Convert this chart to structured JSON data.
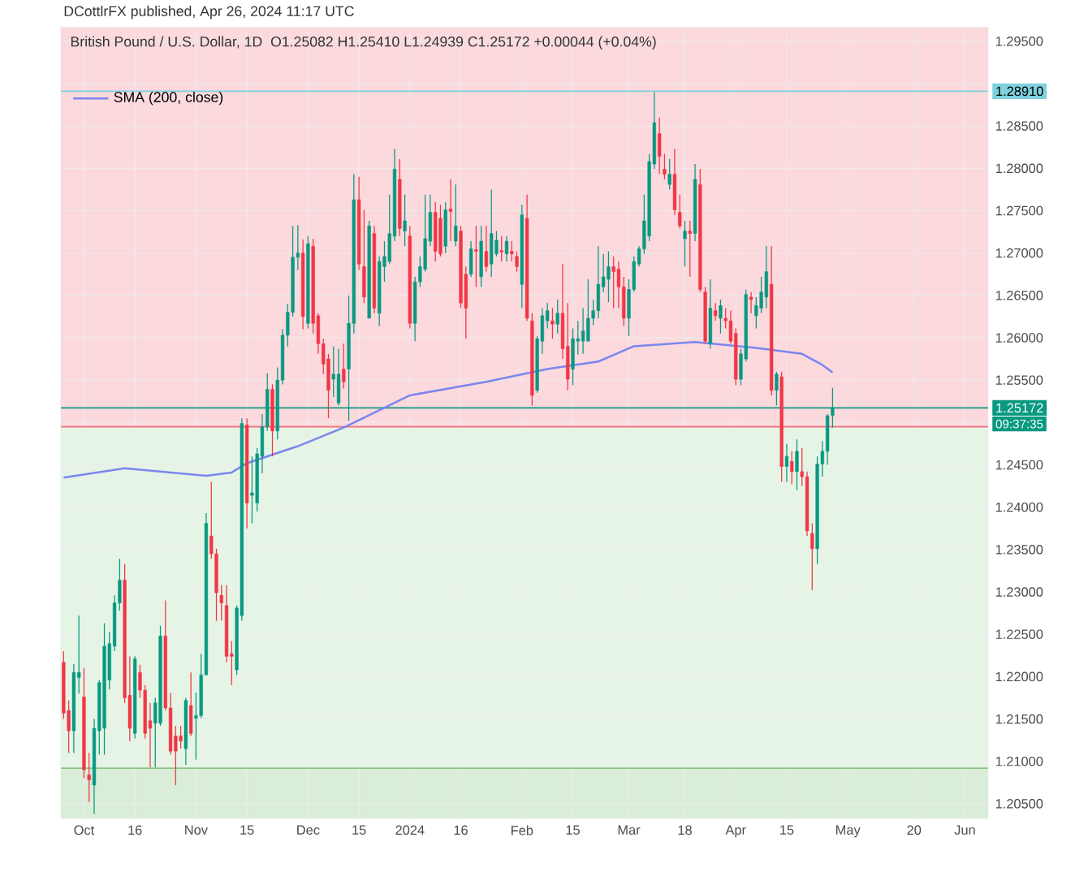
{
  "chart_data": {
    "type": "candlestick",
    "title": "British Pound / U.S. Dollar, 1D",
    "subtitle": "O1.25082 H1.25410 L1.24939 C1.25172 +0.00044 (+0.04%)",
    "annotations": [
      "DCottlrFX published, Apr 26, 2024 11:17 UTC",
      "09:37:35"
    ],
    "categories": [
      null,
      null,
      null,
      null,
      "Oct",
      null,
      null,
      null,
      null,
      null,
      null,
      null,
      null,
      null,
      "16",
      null,
      null,
      null,
      null,
      null,
      null,
      null,
      null,
      null,
      null,
      null,
      "Nov",
      null,
      null,
      null,
      null,
      null,
      null,
      null,
      null,
      null,
      "15",
      null,
      null,
      null,
      null,
      null,
      null,
      null,
      null,
      null,
      null,
      null,
      "Dec",
      null,
      null,
      null,
      null,
      null,
      null,
      null,
      null,
      null,
      "15",
      null,
      null,
      null,
      null,
      null,
      null,
      null,
      null,
      null,
      "2024",
      null,
      null,
      null,
      null,
      null,
      null,
      null,
      null,
      null,
      "16",
      null,
      null,
      null,
      null,
      null,
      null,
      null,
      null,
      null,
      null,
      null,
      "Feb",
      null,
      null,
      null,
      null,
      null,
      null,
      null,
      null,
      null,
      "15",
      null,
      null,
      null,
      null,
      null,
      null,
      null,
      null,
      null,
      null,
      "Mar",
      null,
      null,
      null,
      null,
      null,
      null,
      null,
      null,
      null,
      null,
      "18",
      null,
      null,
      null,
      null,
      null,
      null,
      null,
      null,
      null,
      "Apr",
      null,
      null,
      null,
      null,
      null,
      null,
      null,
      null,
      null,
      "15",
      null,
      null,
      null,
      null,
      null,
      null,
      null,
      null,
      null,
      null,
      null,
      "May",
      null,
      null,
      null,
      null,
      null,
      null,
      null,
      null,
      null,
      null,
      null,
      null,
      "20",
      null,
      null,
      null,
      null,
      null,
      null,
      null,
      null,
      null,
      "Jun",
      null,
      null,
      null,
      null
    ],
    "ohlc": [
      [
        1.2217,
        1.223,
        1.215,
        1.2157
      ],
      [
        1.216,
        1.2172,
        1.211,
        1.2136
      ],
      [
        1.2136,
        1.2215,
        1.211,
        1.2205
      ],
      [
        1.2199,
        1.2272,
        1.218,
        1.2205
      ],
      [
        1.2176,
        1.221,
        1.208,
        1.209
      ],
      [
        1.2084,
        1.211,
        1.2052,
        1.2078
      ],
      [
        1.2072,
        1.215,
        1.2038,
        1.2139
      ],
      [
        1.2136,
        1.2196,
        1.2108,
        1.2193
      ],
      [
        1.2139,
        1.2263,
        1.2108,
        1.2236
      ],
      [
        1.2196,
        1.2253,
        1.2185,
        1.2239
      ],
      [
        1.2236,
        1.2296,
        1.223,
        1.2287
      ],
      [
        1.2287,
        1.2339,
        1.2278,
        1.2314
      ],
      [
        1.2314,
        1.2333,
        1.2169,
        1.2175
      ],
      [
        1.2178,
        1.2224,
        1.2124,
        1.2139
      ],
      [
        1.2133,
        1.2224,
        1.2127,
        1.2221
      ],
      [
        1.2205,
        1.2214,
        1.2175,
        1.2184
      ],
      [
        1.2184,
        1.219,
        1.2127,
        1.2133
      ],
      [
        1.2148,
        1.2169,
        1.2093,
        1.2139
      ],
      [
        1.2145,
        1.2175,
        1.2093,
        1.2169
      ],
      [
        1.2145,
        1.226,
        1.2142,
        1.2248
      ],
      [
        1.2248,
        1.229,
        1.216,
        1.2163
      ],
      [
        1.2163,
        1.2181,
        1.2108,
        1.2112
      ],
      [
        1.213,
        1.2142,
        1.2072,
        1.2112
      ],
      [
        1.213,
        1.2142,
        1.2115,
        1.2124
      ],
      [
        1.2115,
        1.2175,
        1.2096,
        1.2172
      ],
      [
        1.2166,
        1.2205,
        1.213,
        1.2133
      ],
      [
        1.2151,
        1.2181,
        1.2102,
        1.2154
      ],
      [
        1.2154,
        1.2227,
        1.2151,
        1.2202
      ],
      [
        1.2202,
        1.2393,
        1.2202,
        1.2381
      ],
      [
        1.2366,
        1.243,
        1.2339,
        1.2345
      ],
      [
        1.2345,
        1.2351,
        1.2266,
        1.2299
      ],
      [
        1.2296,
        1.2308,
        1.2266,
        1.2287
      ],
      [
        1.2284,
        1.2308,
        1.2217,
        1.2224
      ],
      [
        1.2227,
        1.2242,
        1.219,
        1.2224
      ],
      [
        1.2208,
        1.2284,
        1.2202,
        1.2281
      ],
      [
        1.2272,
        1.2505,
        1.2266,
        1.2499
      ],
      [
        1.2497,
        1.2505,
        1.2375,
        1.2405
      ],
      [
        1.2414,
        1.246,
        1.2381,
        1.2417
      ],
      [
        1.2405,
        1.247,
        1.2395,
        1.2463
      ],
      [
        1.246,
        1.251,
        1.244,
        1.2495
      ],
      [
        1.2495,
        1.2558,
        1.249,
        1.2539
      ],
      [
        1.2539,
        1.2545,
        1.246,
        1.249
      ],
      [
        1.249,
        1.2565,
        1.248,
        1.255
      ],
      [
        1.255,
        1.261,
        1.2545,
        1.2603
      ],
      [
        1.2603,
        1.264,
        1.259,
        1.263
      ],
      [
        1.263,
        1.2732,
        1.2625,
        1.2695
      ],
      [
        1.2695,
        1.2733,
        1.268,
        1.27
      ],
      [
        1.27,
        1.2716,
        1.261,
        1.2625
      ],
      [
        1.2617,
        1.272,
        1.2611,
        1.2711
      ],
      [
        1.2708,
        1.2717,
        1.2605,
        1.2617
      ],
      [
        1.2626,
        1.2629,
        1.2581,
        1.2593
      ],
      [
        1.2593,
        1.2599,
        1.2557,
        1.2569
      ],
      [
        1.2575,
        1.2581,
        1.2505,
        1.2538
      ],
      [
        1.2551,
        1.259,
        1.253,
        1.2557
      ],
      [
        1.2523,
        1.2587,
        1.252,
        1.2557
      ],
      [
        1.2563,
        1.2593,
        1.254,
        1.2548
      ],
      [
        1.2563,
        1.265,
        1.2502,
        1.2617
      ],
      [
        1.2617,
        1.2793,
        1.2605,
        1.2763
      ],
      [
        1.2763,
        1.279,
        1.268,
        1.2687
      ],
      [
        1.2684,
        1.2751,
        1.2641,
        1.2648
      ],
      [
        1.2623,
        1.2738,
        1.2623,
        1.2732
      ],
      [
        1.2723,
        1.2732,
        1.2629,
        1.2635
      ],
      [
        1.2629,
        1.2696,
        1.2614,
        1.269
      ],
      [
        1.2684,
        1.2714,
        1.2666,
        1.2696
      ],
      [
        1.269,
        1.2769,
        1.2687,
        1.2723
      ],
      [
        1.272,
        1.2823,
        1.2714,
        1.2799
      ],
      [
        1.2787,
        1.2811,
        1.272,
        1.2729
      ],
      [
        1.2726,
        1.2769,
        1.2708,
        1.2738
      ],
      [
        1.272,
        1.2732,
        1.2611,
        1.2617
      ],
      [
        1.2617,
        1.2672,
        1.2596,
        1.2666
      ],
      [
        1.2666,
        1.2696,
        1.266,
        1.2684
      ],
      [
        1.2681,
        1.2769,
        1.2678,
        1.2717
      ],
      [
        1.2714,
        1.2769,
        1.2708,
        1.2748
      ],
      [
        1.2748,
        1.276,
        1.269,
        1.2702
      ],
      [
        1.2741,
        1.2757,
        1.2696,
        1.2699
      ],
      [
        1.2708,
        1.276,
        1.27,
        1.2751
      ],
      [
        1.2752,
        1.2787,
        1.2714,
        1.2749
      ],
      [
        1.2714,
        1.2781,
        1.2708,
        1.2732
      ],
      [
        1.2726,
        1.2732,
        1.2635,
        1.2641
      ],
      [
        1.2675,
        1.2684,
        1.2599,
        1.2635
      ],
      [
        1.2675,
        1.2714,
        1.2672,
        1.2705
      ],
      [
        1.2704,
        1.2732,
        1.266,
        1.2702
      ],
      [
        1.2672,
        1.2732,
        1.266,
        1.2714
      ],
      [
        1.2702,
        1.2732,
        1.2678,
        1.2684
      ],
      [
        1.2687,
        1.2775,
        1.2672,
        1.2723
      ],
      [
        1.2699,
        1.2726,
        1.2696,
        1.2715
      ],
      [
        1.2703,
        1.272,
        1.269,
        1.2701
      ],
      [
        1.2699,
        1.272,
        1.269,
        1.2714
      ],
      [
        1.2702,
        1.2714,
        1.269,
        1.2699
      ],
      [
        1.2696,
        1.2702,
        1.2678,
        1.2684
      ],
      [
        1.2663,
        1.2757,
        1.2635,
        1.2745
      ],
      [
        1.2741,
        1.2769,
        1.262,
        1.2623
      ],
      [
        1.262,
        1.2629,
        1.252,
        1.2532
      ],
      [
        1.2538,
        1.2602,
        1.2535,
        1.2599
      ],
      [
        1.2596,
        1.2635,
        1.2581,
        1.2626
      ],
      [
        1.262,
        1.2641,
        1.2611,
        1.2632
      ],
      [
        1.262,
        1.2635,
        1.2599,
        1.2616
      ],
      [
        1.2616,
        1.2645,
        1.2605,
        1.2629
      ],
      [
        1.2629,
        1.2687,
        1.2575,
        1.2587
      ],
      [
        1.259,
        1.2641,
        1.2538,
        1.2551
      ],
      [
        1.2563,
        1.2611,
        1.2544,
        1.2599
      ],
      [
        1.2596,
        1.262,
        1.258,
        1.2599
      ],
      [
        1.2596,
        1.2635,
        1.2581,
        1.2608
      ],
      [
        1.2596,
        1.2669,
        1.2596,
        1.2623
      ],
      [
        1.2623,
        1.2645,
        1.2615,
        1.2632
      ],
      [
        1.2632,
        1.2708,
        1.2623,
        1.2663
      ],
      [
        1.266,
        1.2699,
        1.2654,
        1.2672
      ],
      [
        1.2669,
        1.2702,
        1.2642,
        1.2684
      ],
      [
        1.2684,
        1.2696,
        1.2635,
        1.2678
      ],
      [
        1.2681,
        1.269,
        1.2635,
        1.266
      ],
      [
        1.266,
        1.2672,
        1.2614,
        1.2623
      ],
      [
        1.2623,
        1.2669,
        1.2602,
        1.2657
      ],
      [
        1.2657,
        1.2696,
        1.2654,
        1.269
      ],
      [
        1.2687,
        1.2708,
        1.2684,
        1.2705
      ],
      [
        1.2705,
        1.2769,
        1.2699,
        1.2738
      ],
      [
        1.272,
        1.2817,
        1.2714,
        1.2808
      ],
      [
        1.2805,
        1.289,
        1.2799,
        1.2854
      ],
      [
        1.2841,
        1.286,
        1.2793,
        1.2814
      ],
      [
        1.2799,
        1.2817,
        1.2787,
        1.2793
      ],
      [
        1.2781,
        1.2811,
        1.2775,
        1.2793
      ],
      [
        1.2793,
        1.2823,
        1.2745,
        1.2751
      ],
      [
        1.2748,
        1.2769,
        1.2729,
        1.2732
      ],
      [
        1.2717,
        1.2738,
        1.2684,
        1.2726
      ],
      [
        1.2726,
        1.2738,
        1.2672,
        1.2723
      ],
      [
        1.2723,
        1.2805,
        1.2714,
        1.2787
      ],
      [
        1.2781,
        1.2799,
        1.2654,
        1.2657
      ],
      [
        1.2654,
        1.266,
        1.2593,
        1.2596
      ],
      [
        1.2593,
        1.2669,
        1.2587,
        1.2635
      ],
      [
        1.2632,
        1.2641,
        1.262,
        1.2626
      ],
      [
        1.2623,
        1.2645,
        1.2605,
        1.2638
      ],
      [
        1.2623,
        1.2635,
        1.2611,
        1.262
      ],
      [
        1.262,
        1.2632,
        1.2593,
        1.2596
      ],
      [
        1.2605,
        1.2611,
        1.2544,
        1.2551
      ],
      [
        1.2551,
        1.2587,
        1.2544,
        1.2581
      ],
      [
        1.2575,
        1.2657,
        1.2572,
        1.2651
      ],
      [
        1.2648,
        1.2654,
        1.2629,
        1.2645
      ],
      [
        1.2626,
        1.2648,
        1.2611,
        1.2638
      ],
      [
        1.2635,
        1.2672,
        1.2629,
        1.2654
      ],
      [
        1.2648,
        1.2708,
        1.2635,
        1.2678
      ],
      [
        1.2663,
        1.2708,
        1.2532,
        1.2538
      ],
      [
        1.2538,
        1.256,
        1.252,
        1.2557
      ],
      [
        1.2554,
        1.256,
        1.243,
        1.2448
      ],
      [
        1.2448,
        1.2475,
        1.243,
        1.246
      ],
      [
        1.2454,
        1.2466,
        1.2427,
        1.2442
      ],
      [
        1.2442,
        1.248,
        1.242,
        1.2466
      ],
      [
        1.2442,
        1.247,
        1.2425,
        1.2436
      ],
      [
        1.2436,
        1.2442,
        1.2366,
        1.2372
      ],
      [
        1.2369,
        1.2381,
        1.2302,
        1.2351
      ],
      [
        1.2351,
        1.246,
        1.2333,
        1.2451
      ],
      [
        1.2451,
        1.2478,
        1.2436,
        1.2466
      ],
      [
        1.2466,
        1.251,
        1.245,
        1.2508
      ],
      [
        1.25082,
        1.2541,
        1.24939,
        1.25172
      ],
      null,
      null,
      null,
      null,
      null,
      null,
      null,
      null,
      null,
      null,
      null,
      null,
      null,
      null,
      null,
      null,
      null,
      null,
      null,
      null,
      null,
      null,
      null,
      null,
      null,
      null,
      null,
      null,
      null,
      null
    ],
    "colors": [
      "#f23645",
      "#f23645",
      "#089981",
      "#089981",
      "#f23645",
      "#f23645",
      "#089981",
      "#089981",
      "#089981",
      "#089981",
      "#089981",
      "#089981",
      "#f23645",
      "#f23645",
      "#089981",
      "#f23645",
      "#f23645",
      "#f23645",
      "#089981",
      "#089981",
      "#f23645",
      "#f23645",
      "#f23645",
      "#f23645",
      "#089981",
      "#f23645",
      "#089981",
      "#089981",
      "#089981",
      "#f23645",
      "#f23645",
      "#f23645",
      "#f23645",
      "#f23645",
      "#089981",
      "#089981",
      "#f23645",
      "#089981",
      "#089981",
      "#089981",
      "#089981",
      "#f23645",
      "#089981",
      "#089981",
      "#089981",
      "#089981",
      "#089981",
      "#f23645",
      "#089981",
      "#f23645",
      "#f23645",
      "#f23645",
      "#f23645",
      "#089981",
      "#089981",
      "#f23645",
      "#089981",
      "#089981",
      "#f23645",
      "#f23645",
      "#089981",
      "#f23645",
      "#089981",
      "#089981",
      "#089981",
      "#089981",
      "#f23645",
      "#089981",
      "#f23645",
      "#089981",
      "#089981",
      "#089981",
      "#089981",
      "#f23645",
      "#f23645",
      "#089981",
      "#f23645",
      "#089981",
      "#f23645",
      "#f23645",
      "#089981",
      "#f23645",
      "#089981",
      "#f23645",
      "#089981",
      "#089981",
      "#f23645",
      "#089981",
      "#f23645",
      "#f23645",
      "#089981",
      "#f23645",
      "#f23645",
      "#089981",
      "#089981",
      "#089981",
      "#f23645",
      "#089981",
      "#f23645",
      "#f23645",
      "#089981",
      "#089981",
      "#089981",
      "#089981",
      "#089981",
      "#089981",
      "#089981",
      "#089981",
      "#f23645",
      "#f23645",
      "#f23645",
      "#089981",
      "#089981",
      "#089981",
      "#089981",
      "#089981",
      "#089981",
      "#f23645",
      "#f23645",
      "#089981",
      "#f23645",
      "#f23645",
      "#089981",
      "#f23645",
      "#089981",
      "#f23645",
      "#f23645",
      "#089981",
      "#f23645",
      "#089981",
      "#f23645",
      "#f23645",
      "#f23645",
      "#089981",
      "#089981",
      "#f23645",
      "#089981",
      "#089981",
      "#089981",
      "#f23645",
      "#089981",
      "#f23645",
      "#089981",
      "#f23645",
      "#089981",
      "#f23645",
      "#f23645",
      "#f23645",
      "#089981",
      "#089981",
      "#089981",
      "#089981",
      null,
      null,
      null,
      null,
      null,
      null,
      null,
      null,
      null,
      null,
      null,
      null,
      null,
      null,
      null,
      null,
      null,
      null,
      null,
      null,
      null,
      null,
      null,
      null,
      null,
      null,
      null,
      null,
      null,
      null
    ],
    "series": [
      {
        "name": "SMA (200, close)",
        "type": "line",
        "color": "#7b86ee",
        "values": [
          1.2435,
          null,
          null,
          null,
          null,
          null,
          null,
          null,
          null,
          null,
          null,
          null,
          1.2446,
          null,
          null,
          null,
          null,
          null,
          null,
          null,
          null,
          null,
          null,
          null,
          null,
          null,
          null,
          null,
          1.2437,
          null,
          null,
          null,
          null,
          1.2441,
          null,
          null,
          1.2452,
          null,
          null,
          null,
          null,
          null,
          null,
          null,
          null,
          null,
          1.2472,
          null,
          null,
          null,
          null,
          null,
          null,
          null,
          null,
          1.2494,
          null,
          null,
          null,
          null,
          null,
          null,
          null,
          null,
          null,
          null,
          null,
          null,
          1.2532,
          null,
          null,
          null,
          null,
          null,
          null,
          null,
          null,
          null,
          null,
          null,
          null,
          null,
          null,
          1.2548,
          null,
          null,
          null,
          null,
          null,
          null,
          null,
          null,
          null,
          null,
          null,
          1.2563,
          null,
          null,
          null,
          null,
          null,
          null,
          null,
          null,
          null,
          1.2572,
          null,
          null,
          null,
          null,
          null,
          null,
          1.259,
          null,
          null,
          null,
          null,
          null,
          null,
          null,
          null,
          null,
          null,
          null,
          1.2595,
          null,
          null,
          null,
          null,
          null,
          null,
          null,
          null,
          null,
          null,
          null,
          1.2588,
          null,
          null,
          null,
          null,
          null,
          null,
          null,
          null,
          1.2581,
          null,
          null,
          null,
          1.2568,
          null,
          1.2559,
          null,
          null,
          null,
          null,
          null,
          null,
          null,
          null,
          null,
          null,
          null,
          null,
          null,
          null,
          null,
          null,
          null,
          null,
          null,
          null,
          null,
          null,
          null,
          null,
          null,
          null,
          null,
          null,
          null,
          null
        ]
      }
    ],
    "ylim": [
      1.2033,
      1.2966
    ],
    "yticks": [
      {
        "value": 1.205,
        "label": "1.20500"
      },
      {
        "value": 1.21,
        "label": "1.21000"
      },
      {
        "value": 1.215,
        "label": "1.21500"
      },
      {
        "value": 1.22,
        "label": "1.22000"
      },
      {
        "value": 1.225,
        "label": "1.22500"
      },
      {
        "value": 1.23,
        "label": "1.23000"
      },
      {
        "value": 1.235,
        "label": "1.23500"
      },
      {
        "value": 1.24,
        "label": "1.24000"
      },
      {
        "value": 1.245,
        "label": "1.24500"
      },
      {
        "value": 1.25,
        "label": null
      },
      {
        "value": 1.255,
        "label": "1.25500"
      },
      {
        "value": 1.26,
        "label": "1.26000"
      },
      {
        "value": 1.265,
        "label": "1.26500"
      },
      {
        "value": 1.27,
        "label": "1.27000"
      },
      {
        "value": 1.275,
        "label": "1.27500"
      },
      {
        "value": 1.28,
        "label": "1.28000"
      },
      {
        "value": 1.285,
        "label": "1.28500"
      },
      {
        "value": 1.29,
        "label": null
      },
      {
        "value": 1.295,
        "label": "1.29500"
      }
    ],
    "bands": [
      {
        "axis": "y",
        "from": 1.2495,
        "to": 1.2966,
        "color": "#fbd9dd"
      },
      {
        "axis": "y",
        "from": 1.2033,
        "to": 1.2495,
        "color": "#e6f4e5"
      },
      {
        "axis": "y",
        "from": 1.2033,
        "to": 1.2092,
        "color": "#d9edd8"
      }
    ],
    "ref_lines": [
      {
        "axis": "y",
        "value": 1.2891,
        "label": "1.28910",
        "color": "#7fd1de"
      },
      {
        "axis": "y",
        "value": 1.25172,
        "label": "1.25172",
        "color": "#089981"
      },
      {
        "axis": "y",
        "value": 1.2495,
        "color": "#f26d7d"
      },
      {
        "axis": "y",
        "value": 1.2092,
        "color": "#8bc48a"
      }
    ],
    "grid": true,
    "legend": "top left"
  }
}
